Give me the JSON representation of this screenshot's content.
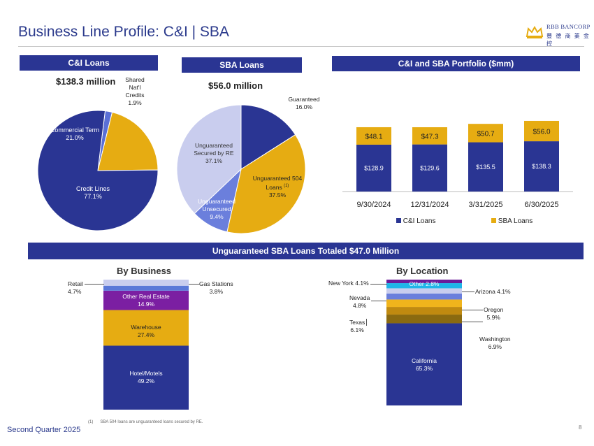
{
  "header": {
    "title": "Business Line Profile: C&I | SBA",
    "logo_line1": "RBB BANCORP",
    "logo_line2": "豐 德 商 業 金 控"
  },
  "ci_loans": {
    "banner": "C&I Loans",
    "total": "$138.3 million",
    "slices": [
      {
        "name": "Credit Lines",
        "value": "77.1%",
        "pct": 77.1,
        "color": "#2a3593"
      },
      {
        "name": "Commercial Term",
        "value": "21.0%",
        "pct": 21.0,
        "color": "#e6ac12"
      },
      {
        "name": "Shared Nat'l Credits",
        "value": "1.9%",
        "pct": 1.9,
        "color": "#5a6fd6"
      }
    ],
    "labels": {
      "credit_lines_name": "Credit Lines",
      "credit_lines_value": "77.1%",
      "commercial_term_name": "Commercial Term",
      "commercial_term_value": "21.0%",
      "shared_name_1": "Shared",
      "shared_name_2": "Nat'l",
      "shared_name_3": "Credits",
      "shared_value": "1.9%"
    }
  },
  "sba_loans": {
    "banner": "SBA Loans",
    "total": "$56.0 million",
    "slices": [
      {
        "name": "Guaranteed",
        "value": "16.0%",
        "pct": 16.0,
        "color": "#2a3593"
      },
      {
        "name": "Unguaranteed 504 Loans",
        "value": "37.5%",
        "pct": 37.5,
        "color": "#e6ac12"
      },
      {
        "name": "Unguaranteed Unsecured",
        "value": "9.4%",
        "pct": 9.4,
        "color": "#6b7fdc"
      },
      {
        "name": "Unguaranteed Secured by RE",
        "value": "37.1%",
        "pct": 37.1,
        "color": "#c9cdee"
      }
    ],
    "labels": {
      "guaranteed_name": "Guaranteed",
      "guaranteed_value": "16.0%",
      "u504_name_1": "Unguaranteed 504",
      "u504_name_2": "Loans",
      "u504_sup": "(1)",
      "u504_value": "37.5%",
      "unsec_name_1": "Unguaranteed",
      "unsec_name_2": "Unsecured",
      "unsec_value": "9.4%",
      "secre_name_1": "Unguaranteed",
      "secre_name_2": "Secured by RE",
      "secre_value": "37.1%"
    }
  },
  "portfolio": {
    "banner": "C&I and SBA Portfolio ($mm)"
  },
  "unguaranteed": {
    "banner": "Unguaranteed SBA Loans Totaled $47.0 Million",
    "by_business_title": "By Business",
    "by_location_title": "By Location"
  },
  "chart_data": [
    {
      "type": "pie",
      "title": "C&I Loans",
      "subtitle": "$138.3 million",
      "categories": [
        "Credit Lines",
        "Commercial Term",
        "Shared Nat'l Credits"
      ],
      "values": [
        77.1,
        21.0,
        1.9
      ]
    },
    {
      "type": "pie",
      "title": "SBA Loans",
      "subtitle": "$56.0 million",
      "categories": [
        "Guaranteed",
        "Unguaranteed 504 Loans",
        "Unguaranteed Unsecured",
        "Unguaranteed Secured by RE"
      ],
      "values": [
        16.0,
        37.5,
        9.4,
        37.1
      ]
    },
    {
      "type": "bar",
      "stacked": true,
      "title": "C&I and SBA Portfolio ($mm)",
      "categories": [
        "9/30/2024",
        "12/31/2024",
        "3/31/2025",
        "6/30/2025"
      ],
      "series": [
        {
          "name": "C&I Loans",
          "color": "#2a3593",
          "values": [
            128.9,
            129.6,
            135.5,
            138.3
          ],
          "labels": [
            "$128.9",
            "$129.6",
            "$135.5",
            "$138.3"
          ]
        },
        {
          "name": "SBA Loans",
          "color": "#e6ac12",
          "values": [
            48.1,
            47.3,
            50.7,
            56.0
          ],
          "labels": [
            "$48.1",
            "$47.3",
            "$50.7",
            "$56.0"
          ]
        }
      ],
      "legend": "bottom"
    },
    {
      "type": "bar",
      "stacked": true,
      "title": "By Business",
      "segments": [
        {
          "name": "Hotel/Motels",
          "value": 49.2,
          "label": "49.2%",
          "color": "#2a3593"
        },
        {
          "name": "Warehouse",
          "value": 27.4,
          "label": "27.4%",
          "color": "#e6ac12"
        },
        {
          "name": "Other Real Estate",
          "value": 14.9,
          "label": "14.9%",
          "color": "#7b1fa2"
        },
        {
          "name": "Gas Stations",
          "value": 3.8,
          "label": "3.8%",
          "color": "#5a78d8"
        },
        {
          "name": "Retail",
          "value": 4.7,
          "label": "4.7%",
          "color": "#c9cdee"
        }
      ]
    },
    {
      "type": "bar",
      "stacked": true,
      "title": "By Location",
      "segments": [
        {
          "name": "California",
          "value": 65.3,
          "label": "65.3%",
          "color": "#2a3593"
        },
        {
          "name": "Washington",
          "value": 6.9,
          "label": "6.9%",
          "color": "#8a6a10"
        },
        {
          "name": "Texas",
          "value": 6.1,
          "label": "6.1%",
          "color": "#c08a10"
        },
        {
          "name": "Oregon",
          "value": 5.9,
          "label": "5.9%",
          "color": "#f0b41c"
        },
        {
          "name": "Nevada",
          "value": 4.8,
          "label": "4.8%",
          "color": "#6b7fdc"
        },
        {
          "name": "Arizona",
          "value": 4.1,
          "label": "4.1%",
          "color": "#c9cdee"
        },
        {
          "name": "New York",
          "value": 4.1,
          "label": "4.1%",
          "color": "#1fb5e8"
        },
        {
          "name": "Other",
          "value": 2.8,
          "label": "2.8%",
          "color": "#6a1b9a"
        }
      ]
    }
  ],
  "bars_text": {
    "legend_ci": "C&I Loans",
    "legend_sba": "SBA Loans"
  },
  "business_labels": {
    "retail_name": "Retail",
    "retail_value": "4.7%",
    "gas_name": "Gas Stations",
    "gas_value": "3.8%",
    "ore_name": "Other Real Estate",
    "ore_value": "14.9%",
    "warehouse_name": "Warehouse",
    "warehouse_value": "27.4%",
    "hotel_name": "Hotel/Motels",
    "hotel_value": "49.2%"
  },
  "location_labels": {
    "other": "Other 2.8%",
    "newyork": "New York 4.1%",
    "arizona": "Arizona 4.1%",
    "nevada_name": "Nevada",
    "nevada_value": "4.8%",
    "oregon_name": "Oregon",
    "oregon_value": "5.9%",
    "texas_name": "Texas",
    "texas_value": "6.1%",
    "washington_name": "Washington",
    "washington_value": "6.9%",
    "california_name": "California",
    "california_value": "65.3%"
  },
  "footer": {
    "quarter": "Second Quarter 2025",
    "footnote_mark": "(1)",
    "footnote_text": "SBA 504 loans are unguaranteed loans secured by RE.",
    "page_number": "8"
  }
}
